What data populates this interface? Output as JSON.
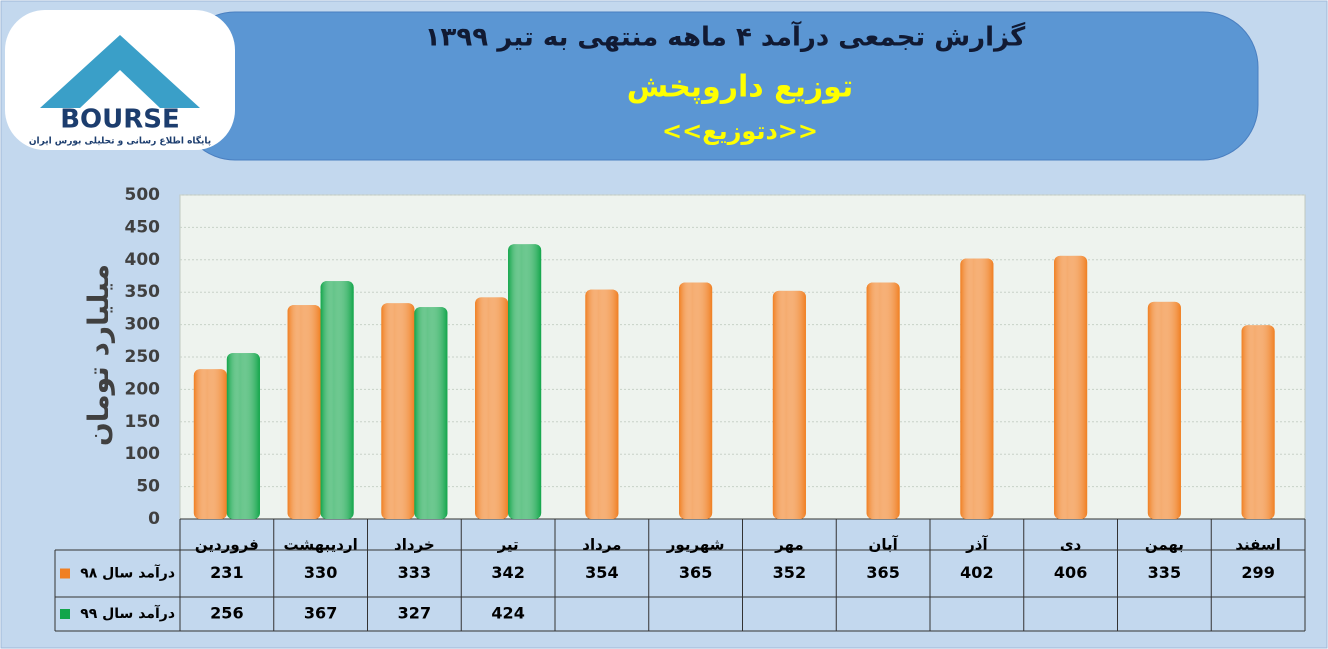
{
  "logo": {
    "name": "BOURSE",
    "tagline": "پایگاه اطلاع رسانی و تحلیلی بورس ایران"
  },
  "chart_data": {
    "type": "bar",
    "title": "گزارش تجمعی درآمد ۴ ماهه منتهی به تیر ۱۳۹۹",
    "subtitle": "توزیع داروپخش",
    "symbol": "<<دتوزیع>>",
    "y_label": "میلیارد تومان",
    "categories": [
      "فروردین",
      "اردیبهشت",
      "خرداد",
      "تیر",
      "مرداد",
      "شهریور",
      "مهر",
      "آبان",
      "آذر",
      "دی",
      "بهمن",
      "اسفند"
    ],
    "series": [
      {
        "name": "درآمد سال ۹۸",
        "color": "#f07f22",
        "values": [
          231,
          330,
          333,
          342,
          354,
          365,
          352,
          365,
          402,
          406,
          335,
          299
        ]
      },
      {
        "name": "درآمد سال ۹۹",
        "color": "#12a54a",
        "values": [
          256,
          367,
          327,
          424,
          null,
          null,
          null,
          null,
          null,
          null,
          null,
          null
        ]
      }
    ],
    "ylim": [
      0,
      500
    ],
    "yticks": [
      0,
      50,
      100,
      150,
      200,
      250,
      300,
      350,
      400,
      450,
      500
    ],
    "grid": true
  }
}
